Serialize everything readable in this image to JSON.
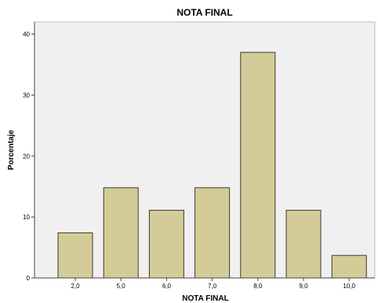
{
  "chart_data": {
    "type": "bar",
    "title": "NOTA FINAL",
    "xlabel": "NOTA FINAL",
    "ylabel": "Porcentaje",
    "categories": [
      "2,0",
      "5,0",
      "6,0",
      "7,0",
      "8,0",
      "9,0",
      "10,0"
    ],
    "values": [
      7.4,
      14.8,
      11.1,
      14.8,
      37.0,
      11.1,
      3.7
    ],
    "ylim": [
      0,
      42
    ],
    "yticks": [
      0,
      10,
      20,
      30,
      40
    ],
    "grid": false,
    "legend": "none",
    "colors": {
      "bar_fill": "#d4cc98",
      "bar_stroke": "#3a3a2a",
      "plot_background": "#f0f0f0",
      "axis": "#444444"
    }
  }
}
